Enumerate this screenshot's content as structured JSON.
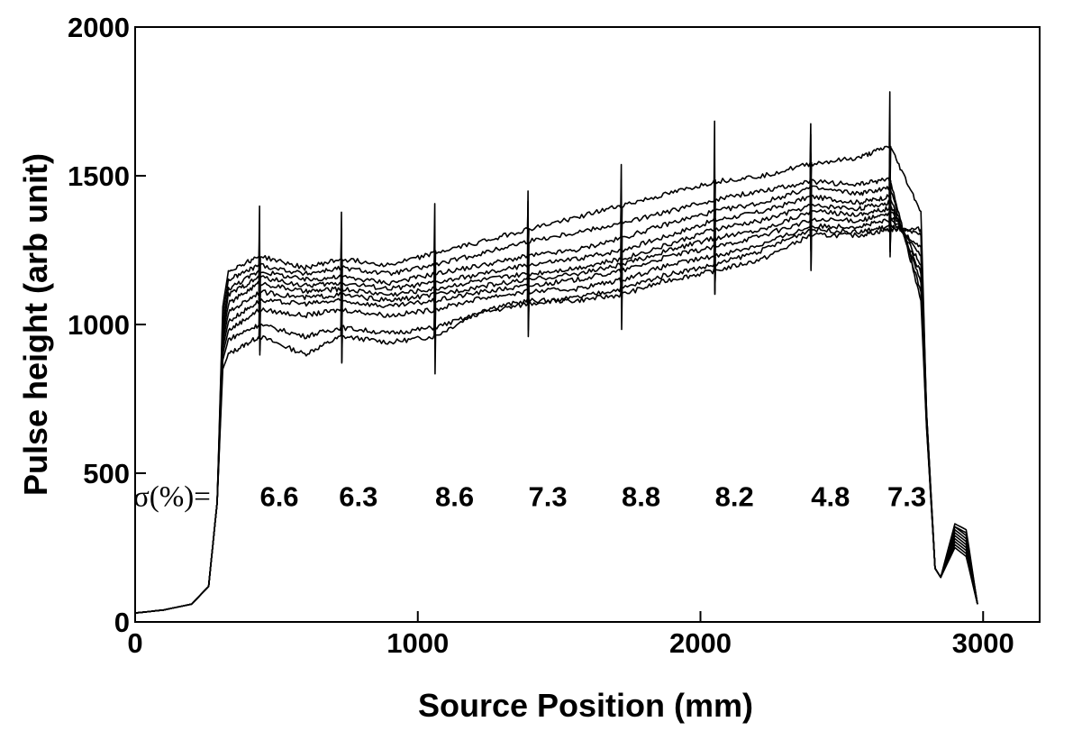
{
  "chart_data": {
    "type": "line",
    "xlabel": "Source Position (mm)",
    "ylabel": "Pulse height (arb unit)",
    "xlim": [
      0,
      3200
    ],
    "ylim": [
      0,
      2000
    ],
    "x_ticks": [
      0,
      1000,
      2000,
      3000
    ],
    "y_ticks": [
      0,
      500,
      1000,
      1500,
      2000
    ],
    "grid": false,
    "legend": "none",
    "line_color": "#000000",
    "annotation_prefix": "σ(%)=",
    "annotations": [
      {
        "x": 510,
        "text": "6.6"
      },
      {
        "x": 790,
        "text": "6.3"
      },
      {
        "x": 1130,
        "text": "8.6"
      },
      {
        "x": 1460,
        "text": "7.3"
      },
      {
        "x": 1790,
        "text": "8.8"
      },
      {
        "x": 2120,
        "text": "8.2"
      },
      {
        "x": 2460,
        "text": "4.8"
      },
      {
        "x": 2730,
        "text": "7.3"
      }
    ],
    "annotation_y": 390,
    "spike_positions": [
      440,
      730,
      1060,
      1390,
      1720,
      2050,
      2390,
      2670
    ],
    "x": [
      0,
      100,
      200,
      260,
      290,
      310,
      330,
      440,
      600,
      730,
      900,
      1060,
      1230,
      1390,
      1560,
      1720,
      1890,
      2050,
      2220,
      2390,
      2560,
      2670,
      2780,
      2800,
      2830,
      2850,
      2900,
      2940,
      2980
    ],
    "series": [
      {
        "values": [
          30,
          40,
          60,
          120,
          400,
          850,
          900,
          960,
          900,
          960,
          940,
          960,
          1050,
          1080,
          1080,
          1100,
          1150,
          1180,
          1220,
          1300,
          1300,
          1320,
          1320,
          700,
          180,
          150,
          250,
          220,
          60
        ]
      },
      {
        "values": [
          30,
          40,
          60,
          120,
          400,
          880,
          950,
          1000,
          960,
          990,
          970,
          990,
          1040,
          1070,
          1090,
          1120,
          1170,
          1200,
          1250,
          1320,
          1310,
          1330,
          1300,
          700,
          180,
          150,
          260,
          230,
          60
        ]
      },
      {
        "values": [
          30,
          40,
          60,
          120,
          400,
          900,
          980,
          1050,
          1030,
          1050,
          1030,
          1050,
          1090,
          1110,
          1120,
          1150,
          1200,
          1230,
          1270,
          1330,
          1330,
          1350,
          1260,
          680,
          180,
          150,
          270,
          240,
          60
        ]
      },
      {
        "values": [
          30,
          40,
          60,
          120,
          400,
          920,
          1010,
          1080,
          1070,
          1080,
          1060,
          1080,
          1110,
          1130,
          1150,
          1180,
          1230,
          1260,
          1300,
          1350,
          1350,
          1370,
          1230,
          680,
          180,
          150,
          280,
          250,
          60
        ]
      },
      {
        "values": [
          30,
          40,
          60,
          120,
          400,
          940,
          1040,
          1110,
          1090,
          1100,
          1080,
          1100,
          1130,
          1150,
          1170,
          1200,
          1250,
          1290,
          1320,
          1380,
          1370,
          1390,
          1200,
          670,
          180,
          150,
          290,
          260,
          60
        ]
      },
      {
        "values": [
          30,
          40,
          60,
          120,
          400,
          960,
          1070,
          1140,
          1110,
          1120,
          1100,
          1120,
          1150,
          1170,
          1190,
          1220,
          1270,
          1320,
          1350,
          1400,
          1390,
          1410,
          1170,
          670,
          180,
          150,
          300,
          270,
          60
        ]
      },
      {
        "values": [
          30,
          40,
          60,
          120,
          400,
          980,
          1100,
          1160,
          1130,
          1140,
          1120,
          1140,
          1170,
          1200,
          1220,
          1250,
          1300,
          1350,
          1380,
          1430,
          1410,
          1430,
          1140,
          660,
          180,
          150,
          310,
          280,
          60
        ]
      },
      {
        "values": [
          30,
          40,
          60,
          120,
          400,
          1000,
          1120,
          1180,
          1150,
          1160,
          1140,
          1170,
          1200,
          1230,
          1250,
          1290,
          1340,
          1380,
          1410,
          1460,
          1440,
          1460,
          1110,
          660,
          180,
          150,
          320,
          290,
          60
        ]
      },
      {
        "values": [
          30,
          40,
          60,
          120,
          400,
          1030,
          1150,
          1200,
          1170,
          1190,
          1170,
          1200,
          1240,
          1280,
          1310,
          1340,
          1380,
          1420,
          1450,
          1480,
          1470,
          1490,
          1080,
          650,
          180,
          150,
          320,
          300,
          60
        ]
      },
      {
        "values": [
          30,
          40,
          60,
          120,
          400,
          1060,
          1180,
          1230,
          1190,
          1220,
          1200,
          1240,
          1280,
          1320,
          1360,
          1400,
          1440,
          1480,
          1500,
          1540,
          1560,
          1600,
          1380,
          700,
          180,
          150,
          330,
          310,
          60
        ]
      }
    ]
  }
}
